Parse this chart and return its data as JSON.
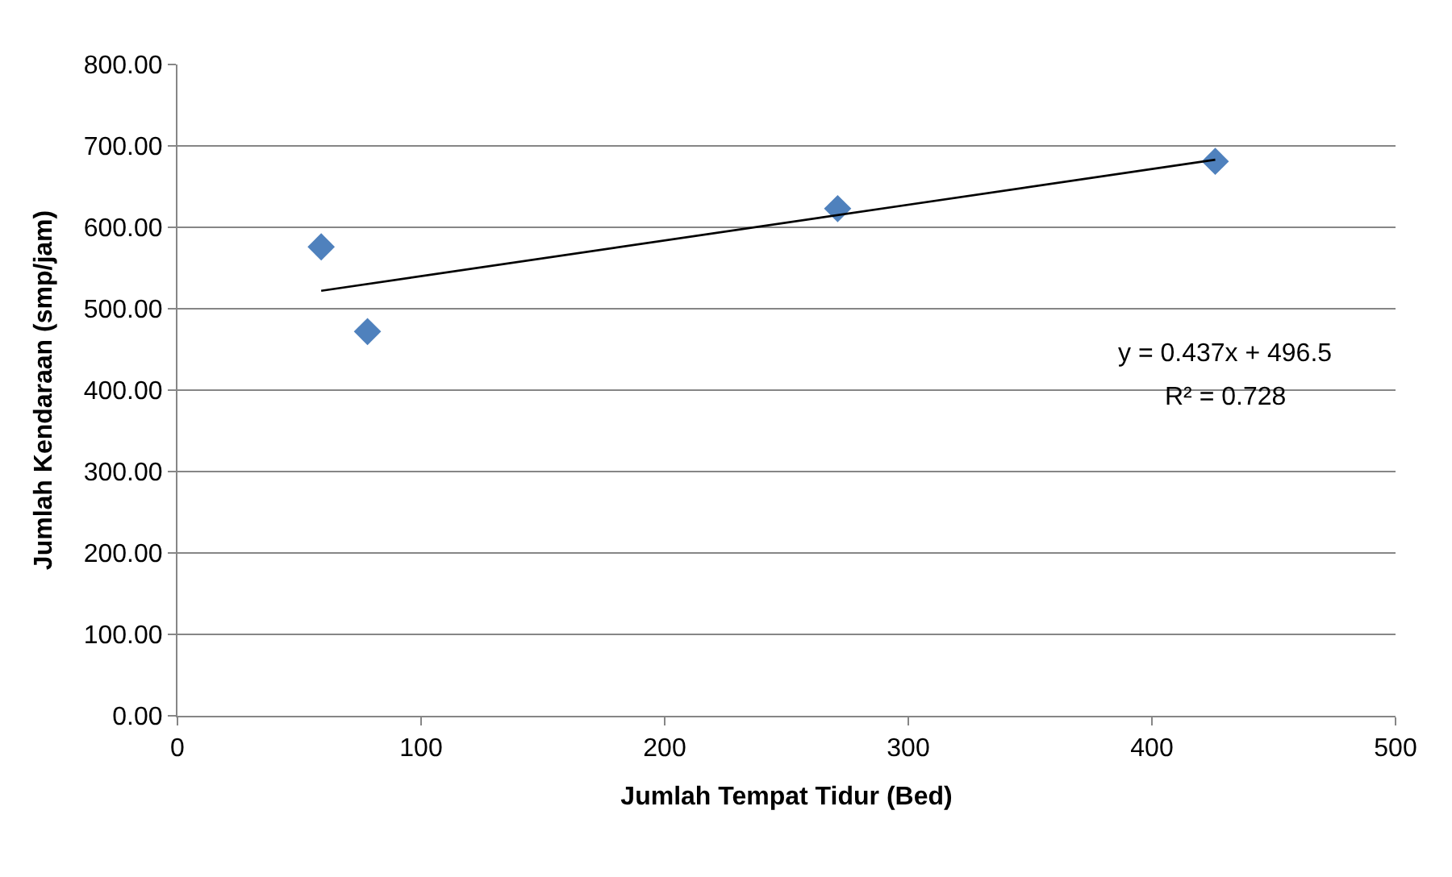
{
  "chart_data": {
    "type": "scatter",
    "xlabel": "Jumlah Tempat Tidur (Bed)",
    "ylabel": "Jumlah Kendaraan (smp/jam)",
    "series": [
      {
        "color": "#4f81bd",
        "marker": "diamond",
        "x": [
          59,
          78,
          271,
          426
        ],
        "values": [
          576,
          472,
          623,
          681
        ]
      },
      {
        "type": "line",
        "color": "#000000",
        "marker": "none",
        "line_style": "solid",
        "x": [
          59,
          426
        ],
        "values": [
          522,
          683
        ]
      }
    ],
    "annotations": [
      "y = 0.437x + 496.5",
      "R² = 0.728"
    ],
    "xlim": [
      0,
      500
    ],
    "xticks": [
      0,
      100,
      200,
      300,
      400,
      500
    ],
    "ylim": [
      0,
      800
    ],
    "yticks": [
      {
        "value": 0,
        "label": "0.00"
      },
      {
        "value": 100,
        "label": "100.00"
      },
      {
        "value": 200,
        "label": "200.00"
      },
      {
        "value": 300,
        "label": "300.00"
      },
      {
        "value": 400,
        "label": "400.00"
      },
      {
        "value": 500,
        "label": "500.00"
      },
      {
        "value": 600,
        "label": "600.00"
      },
      {
        "value": 700,
        "label": "700.00"
      },
      {
        "value": 800,
        "label": "800.00"
      }
    ],
    "grid": "y"
  }
}
